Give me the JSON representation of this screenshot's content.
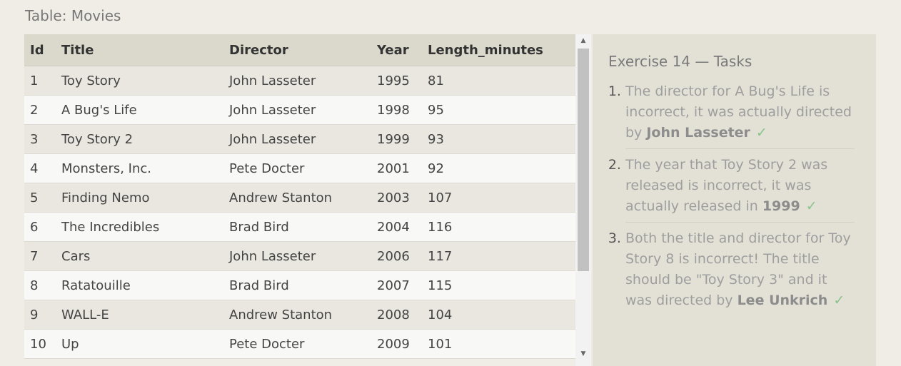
{
  "table": {
    "caption": "Table: Movies",
    "columns": [
      "Id",
      "Title",
      "Director",
      "Year",
      "Length_minutes"
    ],
    "rows": [
      [
        "1",
        "Toy Story",
        "John Lasseter",
        "1995",
        "81"
      ],
      [
        "2",
        "A Bug's Life",
        "John Lasseter",
        "1998",
        "95"
      ],
      [
        "3",
        "Toy Story 2",
        "John Lasseter",
        "1999",
        "93"
      ],
      [
        "4",
        "Monsters, Inc.",
        "Pete Docter",
        "2001",
        "92"
      ],
      [
        "5",
        "Finding Nemo",
        "Andrew Stanton",
        "2003",
        "107"
      ],
      [
        "6",
        "The Incredibles",
        "Brad Bird",
        "2004",
        "116"
      ],
      [
        "7",
        "Cars",
        "John Lasseter",
        "2006",
        "117"
      ],
      [
        "8",
        "Ratatouille",
        "Brad Bird",
        "2007",
        "115"
      ],
      [
        "9",
        "WALL-E",
        "Andrew Stanton",
        "2008",
        "104"
      ],
      [
        "10",
        "Up",
        "Pete Docter",
        "2009",
        "101"
      ]
    ]
  },
  "scrollbar": {
    "up_icon": "scroll-up-arrow",
    "down_icon": "scroll-down-arrow",
    "up_glyph": "▲",
    "down_glyph": "▼"
  },
  "tasks": {
    "heading": "Exercise 14 — Tasks",
    "check_glyph": "✓",
    "check_color": "#88c48a",
    "items": [
      {
        "text_before": "The director for A Bug's Life is incorrect, it was actually directed by ",
        "strong": "John Lasseter",
        "text_after": "",
        "completed": true
      },
      {
        "text_before": "The year that Toy Story 2 was released is incorrect, it was actually released in ",
        "strong": "1999",
        "text_after": "",
        "completed": true
      },
      {
        "text_before": "Both the title and director for Toy Story 8 is incorrect! The title should be \"Toy Story 3\" and it was directed by ",
        "strong": "Lee Unkrich",
        "text_after": "",
        "completed": true
      }
    ]
  }
}
